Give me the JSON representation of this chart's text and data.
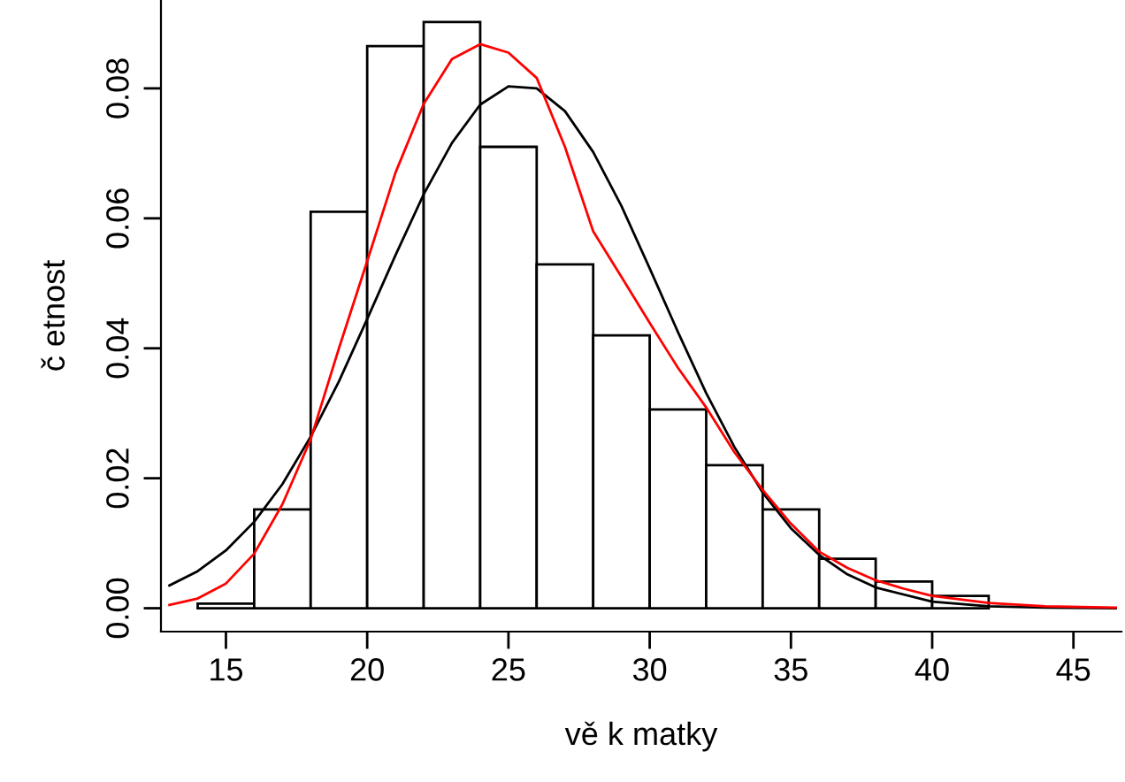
{
  "chart_data": {
    "type": "histogram",
    "xlabel": "vě k matky",
    "ylabel": "č etnost",
    "bins": [
      14,
      16,
      18,
      20,
      22,
      24,
      26,
      28,
      30,
      32,
      34,
      36,
      38,
      40,
      42,
      44,
      46
    ],
    "values": [
      0.0007,
      0.0152,
      0.061,
      0.0865,
      0.0902,
      0.071,
      0.0529,
      0.042,
      0.0306,
      0.022,
      0.0152,
      0.0076,
      0.0041,
      0.0019,
      null,
      null
    ],
    "color": "#ffffff",
    "series": [
      {
        "type": "line",
        "color": "#000000",
        "x": [
          13,
          14,
          15,
          16,
          17,
          18,
          19,
          20,
          21,
          22,
          23,
          24,
          25,
          26,
          27,
          28,
          29,
          30,
          31,
          32,
          33,
          34,
          35,
          36,
          37,
          38,
          40,
          42,
          44,
          46.5
        ],
        "values": [
          0.0035,
          0.0057,
          0.0089,
          0.0133,
          0.0191,
          0.0264,
          0.0349,
          0.0445,
          0.0543,
          0.0637,
          0.0716,
          0.0775,
          0.0803,
          0.08,
          0.0765,
          0.0702,
          0.0619,
          0.0523,
          0.0425,
          0.0331,
          0.0248,
          0.0178,
          0.0123,
          0.0082,
          0.0052,
          0.0032,
          0.001,
          0.0003,
          0.0001,
          0.0
        ]
      },
      {
        "type": "line",
        "color": "#ff0000",
        "x": [
          13,
          14,
          15,
          16,
          17,
          18,
          19,
          20,
          21,
          22,
          23,
          24,
          25,
          26,
          27,
          28,
          29,
          30,
          31,
          32,
          33,
          34,
          35,
          36,
          37,
          38,
          39,
          40,
          42,
          44,
          46.5
        ],
        "values": [
          0.0005,
          0.0015,
          0.0038,
          0.0084,
          0.016,
          0.026,
          0.04,
          0.0534,
          0.067,
          0.0776,
          0.0845,
          0.0868,
          0.0855,
          0.0816,
          0.071,
          0.058,
          0.051,
          0.0439,
          0.037,
          0.0309,
          0.024,
          0.0182,
          0.013,
          0.0087,
          0.0062,
          0.0043,
          0.003,
          0.0019,
          0.0008,
          0.0003,
          0.0001
        ]
      }
    ],
    "xlim": [
      12.7,
      46.7
    ],
    "ylim": [
      -0.0036,
      0.0936
    ],
    "xticks": [
      15,
      20,
      25,
      30,
      35,
      40,
      45
    ],
    "yticks": [
      {
        "value": 0,
        "label": "0.00"
      },
      {
        "value": 0.02,
        "label": "0.02"
      },
      {
        "value": 0.04,
        "label": "0.04"
      },
      {
        "value": 0.06,
        "label": "0.06"
      },
      {
        "value": 0.08,
        "label": "0.08"
      }
    ]
  }
}
